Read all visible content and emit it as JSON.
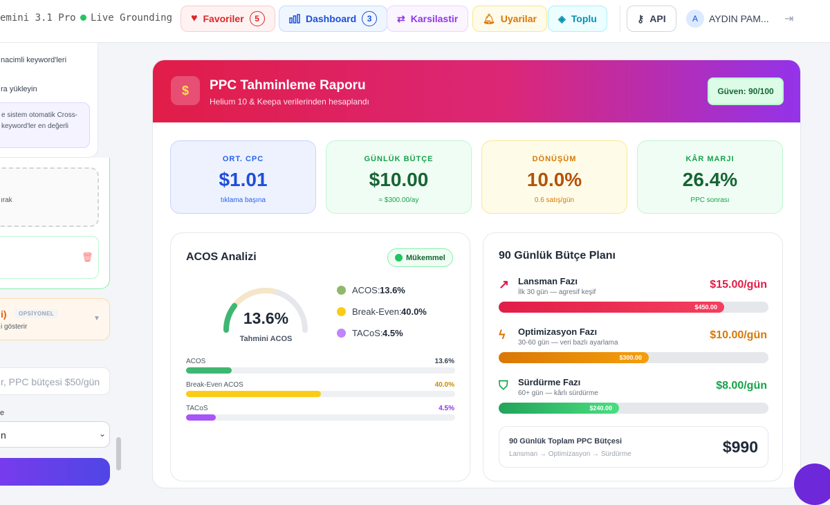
{
  "nav": {
    "model": "emini 3.1 Pro",
    "grounding": "Live Grounding",
    "favorites": "Favoriler",
    "favorites_count": "5",
    "dashboard": "Dashboard",
    "dashboard_count": "3",
    "compare": "Karsilastir",
    "alerts": "Uyarilar",
    "bulk": "Toplu",
    "api": "API",
    "avatar": "A",
    "user": "AYDIN PAM..."
  },
  "sidebar": {
    "line1": "nacimli keyword'leri",
    "line2": "ra yükleyin",
    "note1": "e sistem otomatik Cross-",
    "note2": "keyword'ler en değerli",
    "dashed": "ırak",
    "optional_title": "i)",
    "optional_badge": "OPSİYONEL",
    "optional_sub": "i gösterir",
    "input": "r, PPC bütçesi $50/gün",
    "label": "e",
    "select": "n"
  },
  "report": {
    "title": "PPC Tahminleme Raporu",
    "subtitle": "Helium 10 & Keepa verilerinden hesaplandı",
    "confidence": "Güven: 90/100",
    "stats": [
      {
        "label": "ORT. CPC",
        "value": "$1.01",
        "sub": "tıklama başına"
      },
      {
        "label": "GÜNLÜK BÜTÇE",
        "value": "$10.00",
        "sub": "≈ $300.00/ay"
      },
      {
        "label": "DÖNÜŞÜM",
        "value": "10.0%",
        "sub": "0.6 satış/gün"
      },
      {
        "label": "KÂR MARJI",
        "value": "26.4%",
        "sub": "PPC sonrası"
      }
    ],
    "acos": {
      "title": "ACOS Analizi",
      "badge": "Mükemmel",
      "gauge_value": "13.6%",
      "gauge_label": "Tahmini ACOS",
      "legend": [
        {
          "name": "ACOS:",
          "value": "13.6%"
        },
        {
          "name": "Break-Even:",
          "value": "40.0%"
        },
        {
          "name": "TACoS:",
          "value": "4.5%"
        }
      ],
      "bars": [
        {
          "name": "ACOS",
          "value": "13.6%"
        },
        {
          "name": "Break-Even ACOS",
          "value": "40.0%"
        },
        {
          "name": "TACoS",
          "value": "4.5%"
        }
      ]
    },
    "budget": {
      "title": "90 Günlük Bütçe Planı",
      "phases": [
        {
          "name": "Lansman Fazı",
          "desc": "İlk 30 gün — agresif keşif",
          "rate": "$15.00/gün",
          "total": "$450.00"
        },
        {
          "name": "Optimizasyon Fazı",
          "desc": "30-60 gün — veri bazlı ayarlama",
          "rate": "$10.00/gün",
          "total": "$300.00"
        },
        {
          "name": "Sürdürme Fazı",
          "desc": "60+ gün — kârlı sürdürme",
          "rate": "$8.00/gün",
          "total": "$240.00"
        }
      ],
      "total_label": "90 Günlük Toplam PPC Bütçesi",
      "total_flow": "Lansman → Optimizasyon → Sürdürme",
      "total": "$990"
    }
  }
}
